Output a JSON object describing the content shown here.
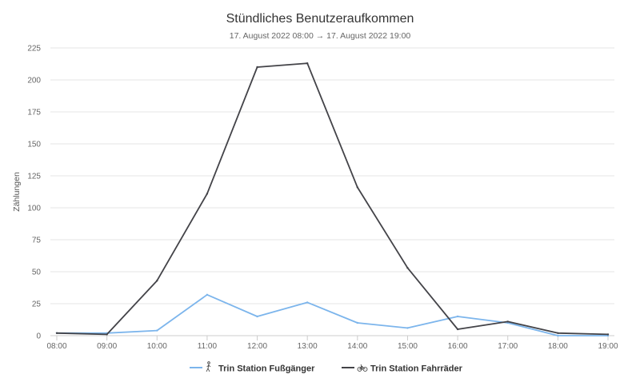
{
  "chart_data": {
    "type": "line",
    "title": "Stündliches Benutzeraufkommen",
    "subtitle": "17. August 2022 08:00 → 17. August 2022 19:00",
    "ylabel": "Zählungen",
    "xlabel": "",
    "ylim": [
      0,
      225
    ],
    "yticks": [
      0,
      25,
      50,
      75,
      100,
      125,
      150,
      175,
      200,
      225
    ],
    "categories": [
      "08:00",
      "09:00",
      "10:00",
      "11:00",
      "12:00",
      "13:00",
      "14:00",
      "15:00",
      "16:00",
      "17:00",
      "18:00",
      "19:00"
    ],
    "series": [
      {
        "name": "Trin Station Fußgänger",
        "icon": "pedestrian-icon",
        "color": "#7cb5ec",
        "values": [
          2,
          2,
          4,
          32,
          15,
          26,
          10,
          6,
          15,
          10,
          0,
          0
        ]
      },
      {
        "name": "Trin Station Fahrräder",
        "icon": "bicycle-icon",
        "color": "#434348",
        "values": [
          2,
          1,
          43,
          111,
          210,
          213,
          116,
          53,
          5,
          11,
          2,
          1
        ]
      }
    ],
    "grid": true,
    "legend": "bottom-center"
  }
}
